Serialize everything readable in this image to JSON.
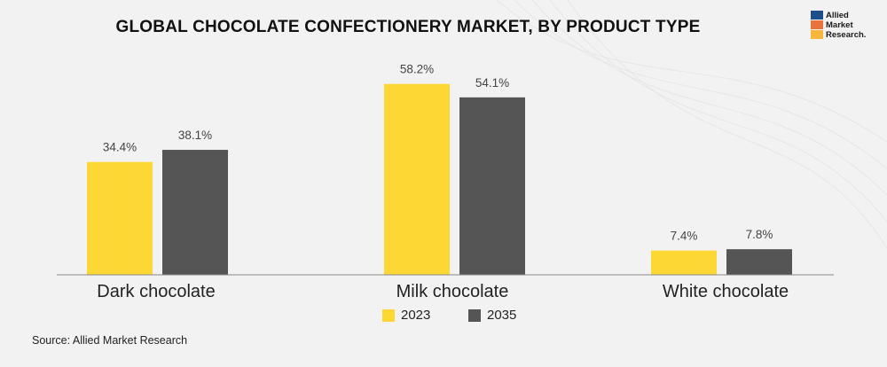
{
  "chart_data": {
    "type": "bar",
    "title": "GLOBAL CHOCOLATE CONFECTIONERY MARKET, BY PRODUCT TYPE",
    "categories": [
      "Dark chocolate",
      "Milk chocolate",
      "White chocolate"
    ],
    "series": [
      {
        "name": "2023",
        "values": [
          34.4,
          58.2,
          7.4
        ],
        "labels": [
          "34.4%",
          "58.2%",
          "7.4%"
        ],
        "color": "#fdd835"
      },
      {
        "name": "2035",
        "values": [
          38.1,
          54.1,
          7.8
        ],
        "labels": [
          "38.1%",
          "54.1%",
          "7.8%"
        ],
        "color": "#555555"
      }
    ],
    "ylim": [
      0,
      60
    ],
    "grid": false,
    "legend": "bottom-center",
    "xlabel": "",
    "ylabel": ""
  },
  "logo": {
    "lines": [
      "Allied",
      "Market",
      "Research."
    ]
  },
  "source": "Source: Allied Market Research",
  "colors": {
    "axis": "#888888",
    "label_text": "#444444",
    "category_text": "#222222"
  }
}
